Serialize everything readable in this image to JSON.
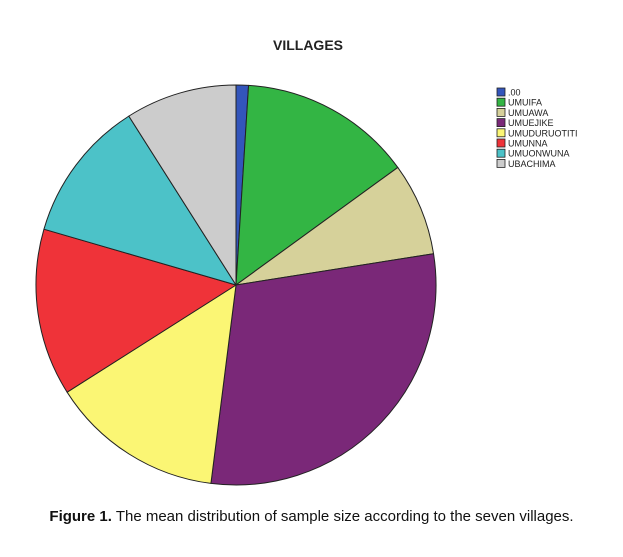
{
  "chart_data": {
    "type": "pie",
    "title": "VILLAGES",
    "labels": [
      ".00",
      "UMUIFA",
      "UMUAWA",
      "UMUEJIKE",
      "UMUDURUOTITI",
      "UMUNNA",
      "UMUONWUNA",
      "UBACHIMA"
    ],
    "values": [
      1.0,
      14.0,
      7.5,
      29.5,
      14.0,
      13.5,
      11.5,
      9.0
    ],
    "colors": [
      "#3355bb",
      "#33b544",
      "#d6d19a",
      "#7a2878",
      "#fbf674",
      "#ef3339",
      "#4cc2c8",
      "#cccccc"
    ],
    "start_angle": "12 o'clock",
    "direction": "clockwise",
    "legend_position": "right"
  },
  "caption": {
    "label": "Figure 1.",
    "text": "The mean distribution of sample size according to the seven villages."
  }
}
